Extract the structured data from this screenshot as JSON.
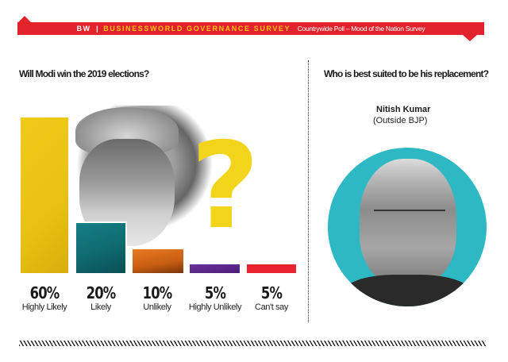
{
  "header": {
    "brand": "BW",
    "separator": "|",
    "title": "BUSINESSWORLD GOVERNANCE SURVEY",
    "subtitle": "Countrywide Poll – Mood of the Nation Survey",
    "ribbon_color": "#e3232c",
    "title_color": "#ffc20e"
  },
  "left_panel": {
    "question": "Will Modi win the 2019 elections?",
    "decoration": "question-mark",
    "decoration_glyph": "?"
  },
  "right_panel": {
    "question": "Who is best suited to be his replacement?",
    "candidate_name": "Nitish Kumar",
    "candidate_party": "(Outside BJP)",
    "circle_color": "#2db8c3"
  },
  "chart_data": {
    "type": "bar",
    "title": "Will Modi win the 2019 elections?",
    "xlabel": "",
    "ylabel": "",
    "categories": [
      "Highly Likely",
      "Likely",
      "Unlikely",
      "Highly Unlikely",
      "Can't say"
    ],
    "values": [
      60,
      20,
      10,
      5,
      5
    ],
    "value_labels": [
      "60%",
      "20%",
      "10%",
      "5%",
      "5%"
    ],
    "colors": [
      "#e9c112",
      "#0f6c72",
      "#d4661a",
      "#5a2585",
      "#ea2331"
    ],
    "unit": "%",
    "ylim": [
      0,
      60
    ],
    "grid": false,
    "legend": "none"
  }
}
